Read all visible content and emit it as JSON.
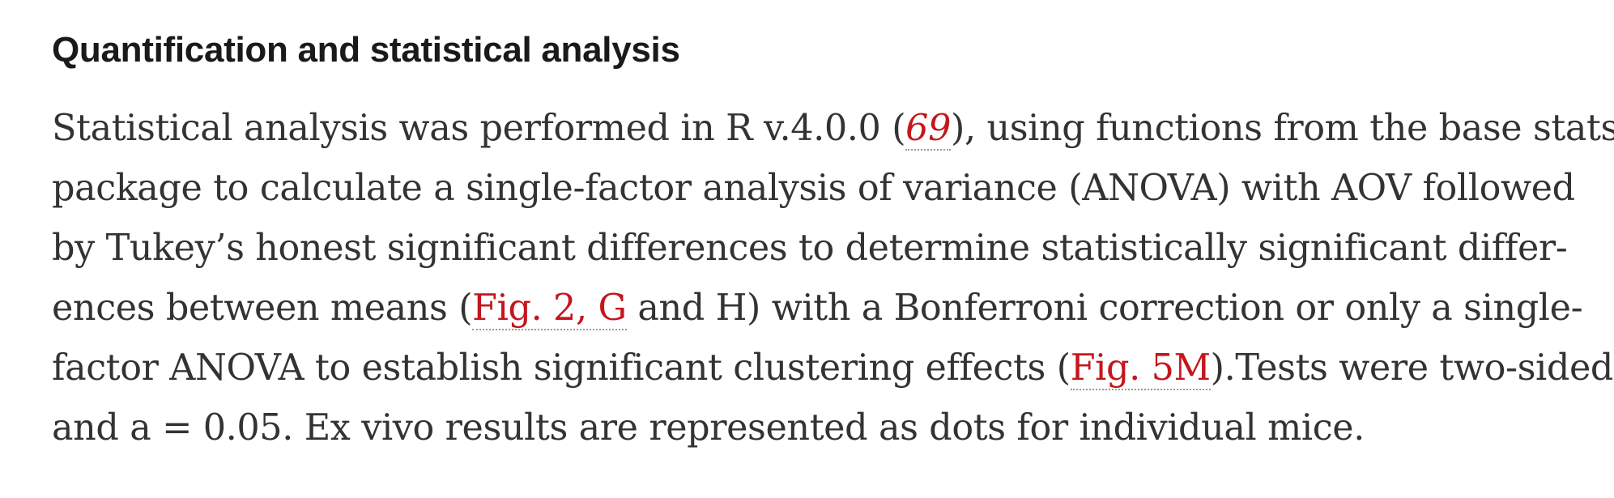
{
  "section": {
    "heading": "Quantification and statistical analysis",
    "paragraph": {
      "line1_a": "Statistical analysis was performed in R v.4.0.0 (",
      "ref_69": "69",
      "line1_b": "), using functions from the base stats",
      "line2": "package to calculate a single-factor analysis of variance (ANOVA) with AOV followed",
      "line3": "by Tukey’s honest significant differences to determine statistically significant differ-",
      "line4_a": "ences between means (",
      "fig2_link": "Fig. 2, G",
      "line4_b": " and H) with a Bonferroni correction or only a single-",
      "line5_a": "factor ANOVA to establish significant clustering effects (",
      "fig5m_link": "Fig. 5M",
      "line5_b": ").Tests were two-sided",
      "line6": "and a = 0.05. Ex vivo results are represented as dots for individual mice."
    }
  },
  "colors": {
    "link": "#c4161c",
    "text": "#333333",
    "heading": "#1a1a1a"
  }
}
